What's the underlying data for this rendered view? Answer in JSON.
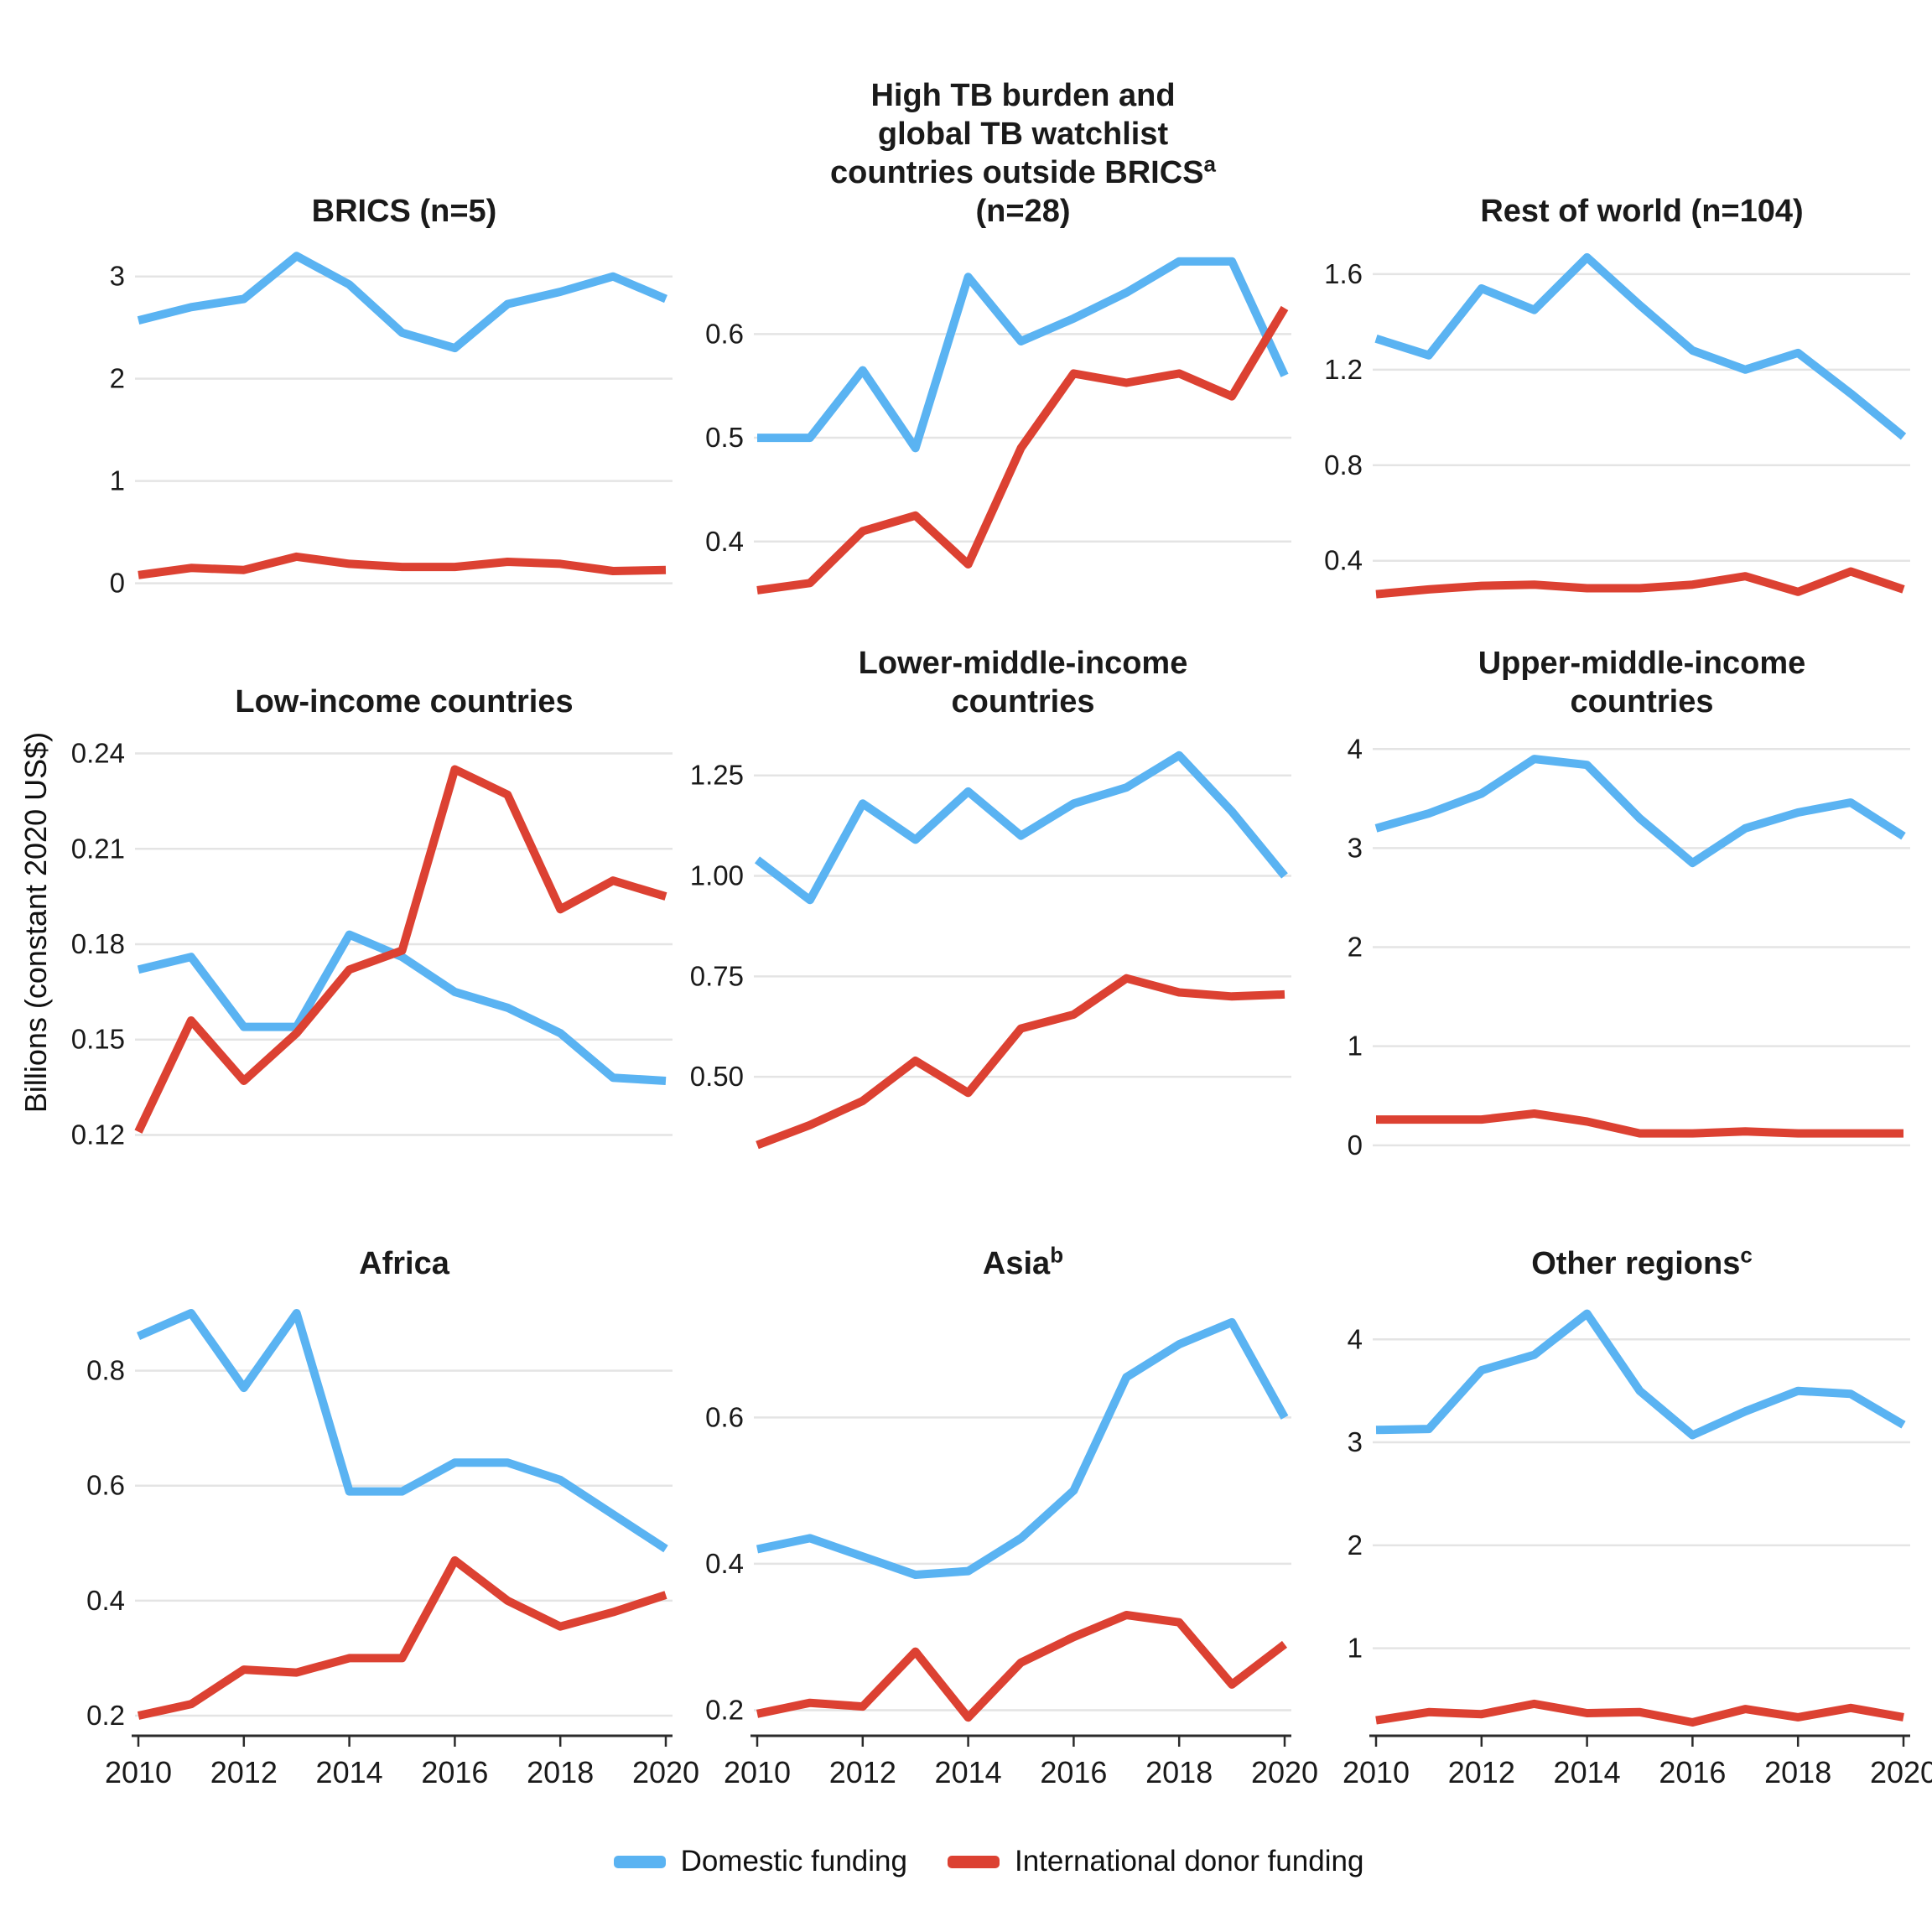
{
  "ylabel": "Billions (constant 2020 US$)",
  "legend": {
    "domestic_label": "Domestic funding",
    "international_label": "International donor funding"
  },
  "colors": {
    "domestic": "#5AB3F2",
    "international": "#DC4132",
    "gridline": "#E4E4E4",
    "axis": "#2B2B2B",
    "tick_text": "#1A1A1A"
  },
  "chart_data": {
    "type": "line",
    "x": {
      "years": [
        2010,
        2011,
        2012,
        2013,
        2014,
        2015,
        2016,
        2017,
        2018,
        2019,
        2020
      ],
      "tick_years": [
        2010,
        2012,
        2014,
        2016,
        2018,
        2020
      ],
      "tick_labels": [
        "2010",
        "2012",
        "2014",
        "2016",
        "2018",
        "2020"
      ]
    },
    "series_names": [
      "Domestic funding",
      "International donor funding"
    ],
    "legend_position": "bottom",
    "grid": "horizontal-only",
    "panels": [
      {
        "id": "brics",
        "row": 1,
        "show_x_axis": false,
        "title_lines": [
          "BRICS (n=5)"
        ],
        "sup": null,
        "sup_line": null,
        "ylim": [
          -0.2,
          3.35
        ],
        "y_ticks": [
          {
            "v": 0,
            "label": "0"
          },
          {
            "v": 1,
            "label": "1"
          },
          {
            "v": 2,
            "label": "2"
          },
          {
            "v": 3,
            "label": "3"
          }
        ],
        "series": {
          "domestic": [
            2.57,
            2.7,
            2.78,
            3.2,
            2.92,
            2.45,
            2.3,
            2.73,
            2.85,
            3.0,
            2.78
          ],
          "international": [
            0.08,
            0.15,
            0.13,
            0.26,
            0.19,
            0.16,
            0.16,
            0.21,
            0.19,
            0.12,
            0.13
          ]
        }
      },
      {
        "id": "high-tb-watchlist",
        "row": 1,
        "show_x_axis": false,
        "title_lines": [
          "High TB burden and",
          "global TB watchlist",
          "countries outside BRICS",
          "(n=28)"
        ],
        "sup": "a",
        "sup_line": 2,
        "ylim": [
          0.34,
          0.69
        ],
        "y_ticks": [
          {
            "v": 0.4,
            "label": "0.4"
          },
          {
            "v": 0.5,
            "label": "0.5"
          },
          {
            "v": 0.6,
            "label": "0.6"
          }
        ],
        "series": {
          "domestic": [
            0.5,
            0.5,
            0.565,
            0.49,
            0.655,
            0.593,
            0.615,
            0.64,
            0.67,
            0.67,
            0.56
          ],
          "international": [
            0.353,
            0.36,
            0.41,
            0.425,
            0.378,
            0.49,
            0.562,
            0.553,
            0.562,
            0.54,
            0.625
          ]
        }
      },
      {
        "id": "rest-of-world",
        "row": 1,
        "show_x_axis": false,
        "title_lines": [
          "Rest of world (n=104)"
        ],
        "sup": null,
        "sup_line": null,
        "ylim": [
          0.22,
          1.74
        ],
        "y_ticks": [
          {
            "v": 0.4,
            "label": "0.4"
          },
          {
            "v": 0.8,
            "label": "0.8"
          },
          {
            "v": 1.2,
            "label": "1.2"
          },
          {
            "v": 1.6,
            "label": "1.6"
          }
        ],
        "series": {
          "domestic": [
            1.33,
            1.26,
            1.54,
            1.45,
            1.67,
            1.47,
            1.28,
            1.2,
            1.27,
            1.1,
            0.92
          ],
          "international": [
            0.26,
            0.28,
            0.295,
            0.3,
            0.285,
            0.285,
            0.3,
            0.335,
            0.27,
            0.355,
            0.28
          ]
        }
      },
      {
        "id": "low-income",
        "row": 2,
        "show_x_axis": false,
        "title_lines": [
          "Low-income countries"
        ],
        "sup": null,
        "sup_line": null,
        "ylim": [
          0.113,
          0.247
        ],
        "y_ticks": [
          {
            "v": 0.12,
            "label": "0.12"
          },
          {
            "v": 0.15,
            "label": "0.15"
          },
          {
            "v": 0.18,
            "label": "0.18"
          },
          {
            "v": 0.21,
            "label": "0.21"
          },
          {
            "v": 0.24,
            "label": "0.24"
          }
        ],
        "series": {
          "domestic": [
            0.172,
            0.176,
            0.154,
            0.154,
            0.183,
            0.176,
            0.165,
            0.16,
            0.152,
            0.138,
            0.137
          ],
          "international": [
            0.121,
            0.156,
            0.137,
            0.152,
            0.172,
            0.178,
            0.235,
            0.227,
            0.191,
            0.2,
            0.195
          ]
        }
      },
      {
        "id": "lower-middle-income",
        "row": 2,
        "show_x_axis": false,
        "title_lines": [
          "Lower-middle-income",
          "countries"
        ],
        "sup": null,
        "sup_line": null,
        "ylim": [
          0.3,
          1.36
        ],
        "y_ticks": [
          {
            "v": 0.5,
            "label": "0.50"
          },
          {
            "v": 0.75,
            "label": "0.75"
          },
          {
            "v": 1.0,
            "label": "1.00"
          },
          {
            "v": 1.25,
            "label": "1.25"
          }
        ],
        "series": {
          "domestic": [
            1.04,
            0.94,
            1.18,
            1.09,
            1.21,
            1.1,
            1.18,
            1.22,
            1.3,
            1.16,
            1.0
          ],
          "international": [
            0.33,
            0.38,
            0.44,
            0.54,
            0.46,
            0.62,
            0.655,
            0.745,
            0.71,
            0.7,
            0.705
          ]
        }
      },
      {
        "id": "upper-middle-income",
        "row": 2,
        "show_x_axis": false,
        "title_lines": [
          "Upper-middle-income",
          "countries"
        ],
        "sup": null,
        "sup_line": null,
        "ylim": [
          -0.12,
          4.18
        ],
        "y_ticks": [
          {
            "v": 0,
            "label": "0"
          },
          {
            "v": 1,
            "label": "1"
          },
          {
            "v": 2,
            "label": "2"
          },
          {
            "v": 3,
            "label": "3"
          },
          {
            "v": 4,
            "label": "4"
          }
        ],
        "series": {
          "domestic": [
            3.2,
            3.35,
            3.55,
            3.9,
            3.84,
            3.3,
            2.85,
            3.2,
            3.36,
            3.46,
            3.12
          ],
          "international": [
            0.26,
            0.26,
            0.26,
            0.32,
            0.24,
            0.12,
            0.12,
            0.14,
            0.12,
            0.12,
            0.12
          ]
        }
      },
      {
        "id": "africa",
        "row": 3,
        "show_x_axis": true,
        "title_lines": [
          "Africa"
        ],
        "sup": null,
        "sup_line": null,
        "ylim": [
          0.165,
          0.935
        ],
        "y_ticks": [
          {
            "v": 0.2,
            "label": "0.2"
          },
          {
            "v": 0.4,
            "label": "0.4"
          },
          {
            "v": 0.6,
            "label": "0.6"
          },
          {
            "v": 0.8,
            "label": "0.8"
          }
        ],
        "series": {
          "domestic": [
            0.86,
            0.9,
            0.77,
            0.9,
            0.59,
            0.59,
            0.64,
            0.64,
            0.61,
            0.55,
            0.49
          ],
          "international": [
            0.2,
            0.22,
            0.28,
            0.275,
            0.3,
            0.3,
            0.47,
            0.4,
            0.355,
            0.38,
            0.41
          ]
        }
      },
      {
        "id": "asia",
        "row": 3,
        "show_x_axis": true,
        "title_lines": [
          "Asia"
        ],
        "sup": "b",
        "sup_line": 0,
        "ylim": [
          0.165,
          0.77
        ],
        "y_ticks": [
          {
            "v": 0.2,
            "label": "0.2"
          },
          {
            "v": 0.4,
            "label": "0.4"
          },
          {
            "v": 0.6,
            "label": "0.6"
          }
        ],
        "series": {
          "domestic": [
            0.42,
            0.435,
            0.41,
            0.385,
            0.39,
            0.435,
            0.5,
            0.655,
            0.7,
            0.73,
            0.6
          ],
          "international": [
            0.195,
            0.21,
            0.205,
            0.28,
            0.19,
            0.265,
            0.3,
            0.33,
            0.32,
            0.235,
            0.29
          ]
        }
      },
      {
        "id": "other-regions",
        "row": 3,
        "show_x_axis": true,
        "title_lines": [
          "Other regions"
        ],
        "sup": "c",
        "sup_line": 0,
        "ylim": [
          0.15,
          4.45
        ],
        "y_ticks": [
          {
            "v": 1,
            "label": "1"
          },
          {
            "v": 2,
            "label": "2"
          },
          {
            "v": 3,
            "label": "3"
          },
          {
            "v": 4,
            "label": "4"
          }
        ],
        "series": {
          "domestic": [
            3.12,
            3.13,
            3.7,
            3.85,
            4.25,
            3.5,
            3.07,
            3.3,
            3.5,
            3.47,
            3.17
          ],
          "international": [
            0.3,
            0.38,
            0.36,
            0.46,
            0.37,
            0.38,
            0.28,
            0.41,
            0.33,
            0.42,
            0.33
          ]
        }
      }
    ]
  }
}
